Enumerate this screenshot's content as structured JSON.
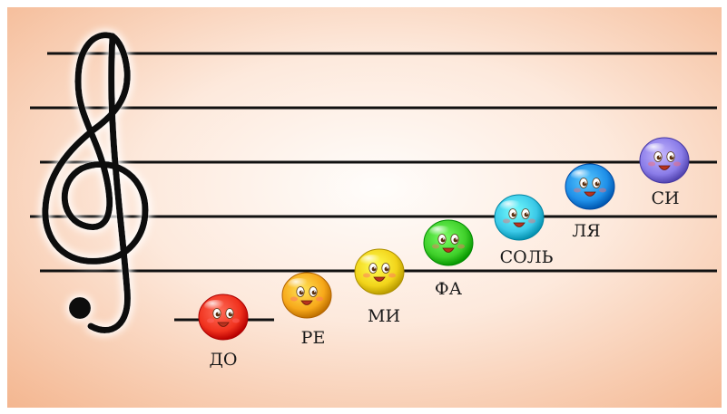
{
  "colors": {
    "background_center": "#fffdfb",
    "background_edge": "#f4b791",
    "staff_line": "#111111",
    "clef": "#0b0b0b"
  },
  "clef": {
    "icon": "treble-clef-icon"
  },
  "notes": [
    {
      "id": "do",
      "label": "ДО",
      "color": "#f0321e"
    },
    {
      "id": "re",
      "label": "РЕ",
      "color": "#f7a81a"
    },
    {
      "id": "mi",
      "label": "МИ",
      "color": "#f2d41a"
    },
    {
      "id": "fa",
      "label": "ФА",
      "color": "#3fcf2a"
    },
    {
      "id": "sol",
      "label": "СОЛЬ",
      "color": "#3cc9e8"
    },
    {
      "id": "la",
      "label": "ЛЯ",
      "color": "#1f8fe8"
    },
    {
      "id": "si",
      "label": "СИ",
      "color": "#8a7ce8"
    }
  ]
}
